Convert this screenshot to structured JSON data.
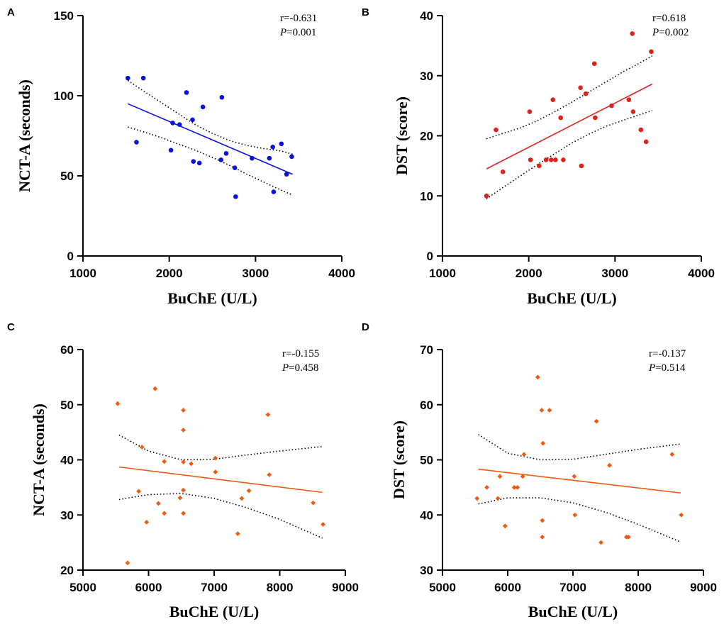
{
  "chart_data": [
    {
      "panel": "A",
      "type": "scatter",
      "marker": "circle",
      "color": "#0a10e0",
      "xlabel": "BuChE (U/L)",
      "ylabel": "NCT-A (seconds)",
      "xlim": [
        1000,
        4000
      ],
      "ylim": [
        0,
        150
      ],
      "xticks": [
        1000,
        2000,
        3000,
        4000
      ],
      "yticks": [
        0,
        50,
        100,
        150
      ],
      "stats": {
        "r": "r=-0.631",
        "p_label": "P",
        "p": "=0.001"
      },
      "points": [
        [
          1520,
          111
        ],
        [
          1620,
          71
        ],
        [
          1700,
          111
        ],
        [
          2020,
          66
        ],
        [
          2040,
          83
        ],
        [
          2120,
          82
        ],
        [
          2200,
          102
        ],
        [
          2270,
          85
        ],
        [
          2280,
          59
        ],
        [
          2350,
          58
        ],
        [
          2390,
          93
        ],
        [
          2600,
          60
        ],
        [
          2610,
          99
        ],
        [
          2660,
          64
        ],
        [
          2760,
          55
        ],
        [
          2770,
          37
        ],
        [
          2960,
          61
        ],
        [
          3160,
          61
        ],
        [
          3200,
          68
        ],
        [
          3210,
          40
        ],
        [
          3300,
          70
        ],
        [
          3360,
          51
        ],
        [
          3420,
          62
        ]
      ],
      "fit": {
        "x": [
          1520,
          3430
        ],
        "y": [
          95,
          51
        ]
      },
      "ci_upper": {
        "x": [
          1520,
          1700,
          1900,
          2100,
          2300,
          2500,
          2700,
          2900,
          3100,
          3300,
          3430
        ],
        "y": [
          109.5,
          103,
          96,
          89,
          82,
          76.5,
          72,
          69,
          67,
          65.5,
          63.5
        ]
      },
      "ci_lower": {
        "x": [
          1520,
          1700,
          1900,
          2100,
          2300,
          2500,
          2700,
          2900,
          3100,
          3300,
          3430
        ],
        "y": [
          80.5,
          77.5,
          74,
          70,
          66,
          61.5,
          56.5,
          51,
          46,
          41,
          38
        ]
      }
    },
    {
      "panel": "B",
      "type": "scatter",
      "marker": "circle",
      "color": "#e0201c",
      "xlabel": "BuChE (U/L)",
      "ylabel": "DST (score)",
      "xlim": [
        1000,
        4000
      ],
      "ylim": [
        0,
        40
      ],
      "xticks": [
        1000,
        2000,
        3000,
        4000
      ],
      "yticks": [
        0,
        10,
        20,
        30,
        40
      ],
      "stats": {
        "r": "r=0.618",
        "p_label": "P",
        "p": "=0.002"
      },
      "points": [
        [
          1510,
          10
        ],
        [
          1620,
          21
        ],
        [
          1700,
          14
        ],
        [
          2010,
          24
        ],
        [
          2020,
          16
        ],
        [
          2120,
          15
        ],
        [
          2200,
          16
        ],
        [
          2260,
          16
        ],
        [
          2280,
          26
        ],
        [
          2310,
          16
        ],
        [
          2370,
          23
        ],
        [
          2400,
          16
        ],
        [
          2600,
          28
        ],
        [
          2610,
          15
        ],
        [
          2660,
          27
        ],
        [
          2760,
          32
        ],
        [
          2770,
          23
        ],
        [
          2960,
          25
        ],
        [
          3160,
          26
        ],
        [
          3200,
          37
        ],
        [
          3210,
          24
        ],
        [
          3300,
          21
        ],
        [
          3360,
          19
        ],
        [
          3420,
          34
        ]
      ],
      "fit": {
        "x": [
          1510,
          3430
        ],
        "y": [
          14.5,
          28.6
        ]
      },
      "ci_upper": {
        "x": [
          1510,
          1700,
          1900,
          2100,
          2300,
          2500,
          2700,
          2900,
          3100,
          3300,
          3430
        ],
        "y": [
          19.5,
          20.4,
          21.3,
          22.5,
          24,
          25.6,
          27.3,
          29,
          30.7,
          32.2,
          33.3
        ]
      },
      "ci_lower": {
        "x": [
          1510,
          1700,
          1900,
          2100,
          2300,
          2500,
          2700,
          2900,
          3100,
          3300,
          3430
        ],
        "y": [
          9.5,
          11.4,
          13.3,
          15.2,
          17,
          18.8,
          20.3,
          21.6,
          22.6,
          23.6,
          24.2
        ]
      }
    },
    {
      "panel": "C",
      "type": "scatter",
      "marker": "diamond",
      "color": "#f25a10",
      "xlabel": "BuChE (U/L)",
      "ylabel": "NCT-A (seconds)",
      "xlim": [
        5000,
        9000
      ],
      "ylim": [
        20,
        60
      ],
      "xticks": [
        5000,
        6000,
        7000,
        8000,
        9000
      ],
      "yticks": [
        20,
        30,
        40,
        50,
        60
      ],
      "stats": {
        "r": "r=-0.155",
        "p_label": "P",
        "p": "=0.458"
      },
      "points": [
        [
          5530,
          50.2
        ],
        [
          5680,
          21.3
        ],
        [
          5850,
          34.3
        ],
        [
          5900,
          42.3
        ],
        [
          5970,
          28.7
        ],
        [
          6100,
          52.9
        ],
        [
          6150,
          32.1
        ],
        [
          6240,
          30.3
        ],
        [
          6240,
          39.7
        ],
        [
          6480,
          33.1
        ],
        [
          6530,
          49
        ],
        [
          6530,
          45.4
        ],
        [
          6530,
          39.6
        ],
        [
          6530,
          34.5
        ],
        [
          6530,
          30.3
        ],
        [
          6650,
          39.3
        ],
        [
          7020,
          40.3
        ],
        [
          7020,
          37.8
        ],
        [
          7360,
          26.6
        ],
        [
          7420,
          33
        ],
        [
          7530,
          34.4
        ],
        [
          7820,
          48.2
        ],
        [
          7840,
          37.3
        ],
        [
          8510,
          32.2
        ],
        [
          8660,
          28.3
        ]
      ],
      "fit": {
        "x": [
          5550,
          8650
        ],
        "y": [
          38.7,
          34.1
        ]
      },
      "ci_upper": {
        "x": [
          5550,
          6000,
          6500,
          7000,
          7500,
          8000,
          8650
        ],
        "y": [
          44.5,
          41.6,
          40,
          40.1,
          40.9,
          41.6,
          42.4
        ]
      },
      "ci_lower": {
        "x": [
          5550,
          6000,
          6500,
          7000,
          7500,
          8000,
          8650
        ],
        "y": [
          32.8,
          33.7,
          33.9,
          33,
          31.3,
          29.2,
          25.8
        ]
      }
    },
    {
      "panel": "D",
      "type": "scatter",
      "marker": "diamond",
      "color": "#f25a10",
      "xlabel": "BuChE (U/L)",
      "ylabel": "DST (score)",
      "xlim": [
        5000,
        9000
      ],
      "ylim": [
        30,
        70
      ],
      "xticks": [
        5000,
        6000,
        7000,
        8000,
        9000
      ],
      "yticks": [
        30,
        40,
        50,
        60,
        70
      ],
      "stats": {
        "r": "r=-0.137",
        "p_label": "P",
        "p": "=0.514"
      },
      "points": [
        [
          5530,
          43
        ],
        [
          5680,
          45
        ],
        [
          5850,
          43
        ],
        [
          5880,
          47
        ],
        [
          5960,
          38
        ],
        [
          6100,
          45
        ],
        [
          6150,
          45
        ],
        [
          6230,
          47
        ],
        [
          6250,
          51
        ],
        [
          6460,
          65
        ],
        [
          6520,
          59
        ],
        [
          6540,
          53
        ],
        [
          6530,
          39
        ],
        [
          6530,
          36
        ],
        [
          6640,
          59
        ],
        [
          7020,
          47
        ],
        [
          7030,
          40
        ],
        [
          7360,
          57
        ],
        [
          7430,
          35
        ],
        [
          7560,
          49
        ],
        [
          7820,
          36
        ],
        [
          7850,
          36
        ],
        [
          8520,
          51
        ],
        [
          8660,
          40
        ]
      ],
      "fit": {
        "x": [
          5550,
          8650
        ],
        "y": [
          48.3,
          44
        ]
      },
      "ci_upper": {
        "x": [
          5550,
          6000,
          6500,
          7000,
          7500,
          8000,
          8650
        ],
        "y": [
          54.6,
          51.2,
          50,
          50.1,
          51,
          51.9,
          52.9
        ]
      },
      "ci_lower": {
        "x": [
          5550,
          6000,
          6500,
          7000,
          7500,
          8000,
          8650
        ],
        "y": [
          42,
          43.1,
          43.1,
          42.2,
          40.5,
          38.3,
          35.1
        ]
      }
    }
  ]
}
